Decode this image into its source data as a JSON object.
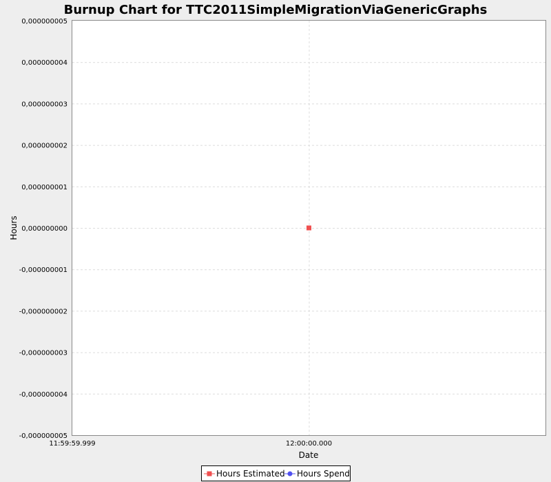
{
  "chart_data": {
    "type": "line",
    "title": "Burnup Chart for TTC2011SimpleMigrationViaGenericGraphs",
    "xlabel": "Date",
    "ylabel": "Hours",
    "x_tick_labels": [
      "11:59:59.999",
      "12:00:00.000"
    ],
    "y_tick_labels": [
      "0,000000005",
      "0,000000004",
      "0,000000003",
      "0,000000002",
      "0,000000001",
      "0,000000000",
      "-0,000000001",
      "-0,000000002",
      "-0,000000003",
      "-0,000000004",
      "-0,000000005"
    ],
    "ylim": [
      -5e-09,
      5e-09
    ],
    "grid": true,
    "legend_position": "bottom-center",
    "series": [
      {
        "name": "Hours Estimated",
        "color": "#f05050",
        "marker": "square",
        "points": [
          {
            "x": "12:00:00.000",
            "y": 0
          }
        ]
      },
      {
        "name": "Hours Spend",
        "color": "#5050f0",
        "marker": "circle",
        "points": []
      }
    ]
  }
}
